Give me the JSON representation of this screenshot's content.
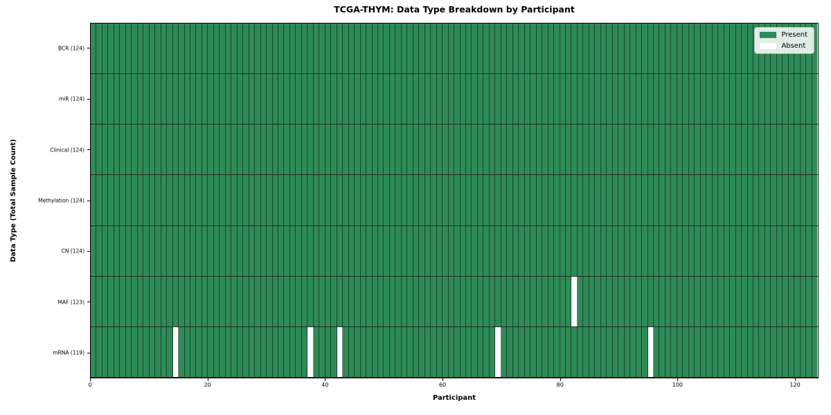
{
  "colors": {
    "present": "#2e8b57",
    "absent": "#ffffff",
    "cell_border": "rgba(0,0,0,0.5)",
    "row_border": "rgba(0,0,0,0.85)",
    "axis": "#000000",
    "legend_bg": "rgba(255,255,255,0.85)",
    "legend_border": "#b5b5b5"
  },
  "chart_data": {
    "type": "heatmap",
    "title": "TCGA-THYM: Data Type Breakdown by Participant",
    "xlabel": "Participant",
    "ylabel": "Data Type (Total Sample Count)",
    "n_participants": 124,
    "x_range": [
      0,
      124
    ],
    "x_ticks": [
      0,
      20,
      40,
      60,
      80,
      100,
      120
    ],
    "grid": "cell-borders",
    "legend_position": "upper right",
    "legend": [
      {
        "label": "Present",
        "color": "#2e8b57"
      },
      {
        "label": "Absent",
        "color": "#ffffff"
      }
    ],
    "rows": [
      {
        "label": "BCR (124)",
        "data_type": "BCR",
        "present_count": 124,
        "absent_participants": []
      },
      {
        "label": "miR (124)",
        "data_type": "miR",
        "present_count": 124,
        "absent_participants": []
      },
      {
        "label": "Clinical (124)",
        "data_type": "Clinical",
        "present_count": 124,
        "absent_participants": []
      },
      {
        "label": "Methylation (124)",
        "data_type": "Methylation",
        "present_count": 124,
        "absent_participants": []
      },
      {
        "label": "CN (124)",
        "data_type": "CN",
        "present_count": 124,
        "absent_participants": []
      },
      {
        "label": "MAF (123)",
        "data_type": "MAF",
        "present_count": 123,
        "absent_participants": [
          82
        ]
      },
      {
        "label": "mRNA (119)",
        "data_type": "mRNA",
        "present_count": 119,
        "absent_participants": [
          14,
          37,
          42,
          69,
          95
        ]
      }
    ]
  }
}
